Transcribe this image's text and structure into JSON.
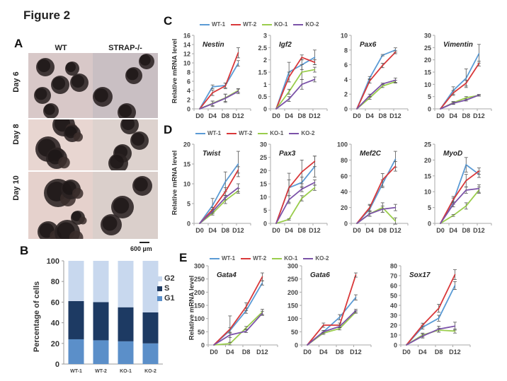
{
  "figure": {
    "title": "Figure 2",
    "panels": {
      "A": "A",
      "B": "B",
      "C": "C",
      "D": "D",
      "E": "E"
    }
  },
  "panelA": {
    "columns": [
      "WT",
      "STRAP-/-"
    ],
    "rows": [
      "Day 6",
      "Day 8",
      "Day 10"
    ],
    "scale_bar": "600 µm"
  },
  "colors": {
    "WT-1": "#5b9bd5",
    "WT-2": "#d9383a",
    "KO-1": "#9acd4c",
    "KO-2": "#7b52a8",
    "G1": "#5b8fc9",
    "S": "#1d3a63",
    "G2": "#c8d8ee"
  },
  "legend_labels": [
    "WT-1",
    "WT-2",
    "KO-1",
    "KO-2"
  ],
  "y_axis_label": "Relative mRNA level",
  "chart_data": [
    {
      "id": "B",
      "type": "bar",
      "stacked": true,
      "title": "",
      "xlabel": "",
      "ylabel": "Percentage of cells",
      "categories": [
        "WT-1",
        "WT-2",
        "KO-1",
        "KO-2"
      ],
      "ylim": [
        0,
        100
      ],
      "yticks": [
        0,
        20,
        40,
        60,
        80,
        100
      ],
      "legend": [
        "G2",
        "S",
        "G1"
      ],
      "legend_position": "right",
      "series": [
        {
          "name": "G1",
          "values": [
            24,
            23,
            22,
            20
          ]
        },
        {
          "name": "S",
          "values": [
            37,
            37,
            33,
            30
          ]
        },
        {
          "name": "G2",
          "values": [
            39,
            40,
            45,
            50
          ]
        }
      ]
    },
    {
      "id": "C-Nestin",
      "type": "line",
      "title": "Nestin",
      "x": [
        "D0",
        "D4",
        "D8",
        "D12"
      ],
      "ylim": [
        0,
        16
      ],
      "yticks": [
        0,
        2,
        4,
        6,
        8,
        10,
        12,
        14,
        16
      ],
      "series": [
        {
          "name": "WT-1",
          "values": [
            0,
            4.8,
            5.1,
            9.9
          ],
          "err": [
            0,
            0.4,
            0.5,
            0.6
          ]
        },
        {
          "name": "WT-2",
          "values": [
            0,
            3.5,
            5.0,
            12.2
          ],
          "err": [
            0,
            0.6,
            0.6,
            1.1
          ]
        },
        {
          "name": "KO-1",
          "values": [
            0,
            1.2,
            2.4,
            4.0
          ],
          "err": [
            0,
            0.5,
            0.8,
            0.4
          ]
        },
        {
          "name": "KO-2",
          "values": [
            0,
            1.1,
            2.3,
            3.8
          ],
          "err": [
            0,
            0.6,
            0.9,
            0.5
          ]
        }
      ]
    },
    {
      "id": "C-Igf2",
      "type": "line",
      "title": "Igf2",
      "x": [
        "D0",
        "D4",
        "D8",
        "D12"
      ],
      "ylim": [
        0,
        3
      ],
      "yticks": [
        0,
        0.5,
        1,
        1.5,
        2,
        2.5,
        3
      ],
      "series": [
        {
          "name": "WT-1",
          "values": [
            0,
            1.5,
            1.8,
            2.1
          ],
          "err": [
            0,
            0.4,
            0.2,
            0.3
          ]
        },
        {
          "name": "WT-2",
          "values": [
            0,
            1.3,
            2.1,
            1.9
          ],
          "err": [
            0,
            0.2,
            0.1,
            0.1
          ]
        },
        {
          "name": "KO-1",
          "values": [
            0,
            0.7,
            1.5,
            1.6
          ],
          "err": [
            0,
            0.1,
            0.3,
            0.1
          ]
        },
        {
          "name": "KO-2",
          "values": [
            0,
            0.4,
            1.0,
            1.2
          ],
          "err": [
            0,
            0.1,
            0.2,
            0.1
          ]
        }
      ]
    },
    {
      "id": "C-Pax6",
      "type": "line",
      "title": "Pax6",
      "x": [
        "D0",
        "D4",
        "D8",
        "D12"
      ],
      "ylim": [
        0,
        10
      ],
      "yticks": [
        0,
        2,
        4,
        6,
        8,
        10
      ],
      "series": [
        {
          "name": "WT-1",
          "values": [
            0,
            4.2,
            7.3,
            8.0
          ],
          "err": [
            0,
            0.2,
            0.1,
            0.3
          ]
        },
        {
          "name": "WT-2",
          "values": [
            0,
            3.8,
            5.9,
            7.7
          ],
          "err": [
            0,
            0.3,
            0.3,
            0.2
          ]
        },
        {
          "name": "KO-1",
          "values": [
            0,
            1.5,
            3.1,
            3.7
          ],
          "err": [
            0,
            0.2,
            0.2,
            0.2
          ]
        },
        {
          "name": "KO-2",
          "values": [
            0,
            1.8,
            3.4,
            3.9
          ],
          "err": [
            0,
            0.2,
            0.1,
            0.3
          ]
        }
      ]
    },
    {
      "id": "C-Vimentin",
      "type": "line",
      "title": "Vimentin",
      "x": [
        "D0",
        "D4",
        "D8",
        "D12"
      ],
      "ylim": [
        0,
        30
      ],
      "yticks": [
        0,
        5,
        10,
        15,
        20,
        25,
        30
      ],
      "series": [
        {
          "name": "WT-1",
          "values": [
            0,
            7.5,
            12.5,
            22.5
          ],
          "err": [
            0,
            1.5,
            3.8,
            3.8
          ]
        },
        {
          "name": "WT-2",
          "values": [
            0,
            6.5,
            10.5,
            18.5
          ],
          "err": [
            0,
            1.0,
            1.2,
            1.0
          ]
        },
        {
          "name": "KO-1",
          "values": [
            0,
            2.5,
            4.5,
            5.5
          ],
          "err": [
            0,
            0.5,
            0.5,
            0.3
          ]
        },
        {
          "name": "KO-2",
          "values": [
            0,
            2.3,
            3.6,
            5.6
          ],
          "err": [
            0,
            0.5,
            0.4,
            0.3
          ]
        }
      ]
    },
    {
      "id": "D-Twist",
      "type": "line",
      "title": "Twist",
      "x": [
        "D0",
        "D4",
        "D8",
        "D12"
      ],
      "ylim": [
        0,
        20
      ],
      "yticks": [
        0,
        5,
        10,
        15,
        20
      ],
      "series": [
        {
          "name": "WT-1",
          "values": [
            0,
            4.5,
            10.5,
            15.0
          ],
          "err": [
            0,
            1.8,
            2.5,
            3.2
          ]
        },
        {
          "name": "WT-2",
          "values": [
            0,
            3.5,
            8.0,
            13.5
          ],
          "err": [
            0,
            0.5,
            1.0,
            0.8
          ]
        },
        {
          "name": "KO-1",
          "values": [
            0,
            2.5,
            5.8,
            8.2
          ],
          "err": [
            0,
            0.4,
            0.8,
            0.6
          ]
        },
        {
          "name": "KO-2",
          "values": [
            0,
            3.0,
            6.5,
            9.0
          ],
          "err": [
            0,
            0.5,
            0.6,
            1.0
          ]
        }
      ]
    },
    {
      "id": "D-Pax3",
      "type": "line",
      "title": "Pax3",
      "x": [
        "D0",
        "D4",
        "D8",
        "D12"
      ],
      "ylim": [
        0,
        30
      ],
      "yticks": [
        0,
        5,
        10,
        15,
        20,
        25,
        30
      ],
      "series": [
        {
          "name": "WT-1",
          "values": [
            0,
            13.5,
            15.5,
            21.5
          ],
          "err": [
            0,
            3.0,
            2.0,
            4.0
          ]
        },
        {
          "name": "WT-2",
          "values": [
            0,
            13.5,
            19.5,
            23.5
          ],
          "err": [
            0,
            5.5,
            4.5,
            2.0
          ]
        },
        {
          "name": "KO-1",
          "values": [
            0,
            1.5,
            9.5,
            13.5
          ],
          "err": [
            0,
            0.3,
            1.0,
            1.0
          ]
        },
        {
          "name": "KO-2",
          "values": [
            0,
            9.0,
            13.0,
            15.5
          ],
          "err": [
            0,
            1.5,
            1.0,
            1.0
          ]
        }
      ]
    },
    {
      "id": "D-Mef2C",
      "type": "line",
      "title": "Mef2C",
      "x": [
        "D0",
        "D4",
        "D8",
        "D12"
      ],
      "ylim": [
        0,
        100
      ],
      "yticks": [
        0,
        20,
        40,
        60,
        80,
        100
      ],
      "series": [
        {
          "name": "WT-1",
          "values": [
            0,
            18,
            50,
            81
          ],
          "err": [
            0,
            5,
            5,
            10
          ]
        },
        {
          "name": "WT-2",
          "values": [
            0,
            20,
            55,
            72
          ],
          "err": [
            0,
            4,
            8,
            6
          ]
        },
        {
          "name": "KO-1",
          "values": [
            0,
            12,
            20,
            3
          ],
          "err": [
            0,
            3,
            6,
            4
          ]
        },
        {
          "name": "KO-2",
          "values": [
            0,
            12,
            18,
            20
          ],
          "err": [
            0,
            3,
            4,
            4
          ]
        }
      ]
    },
    {
      "id": "D-MyoD",
      "type": "line",
      "title": "MyoD",
      "x": [
        "D0",
        "D4",
        "D8",
        "D12"
      ],
      "ylim": [
        0,
        25
      ],
      "yticks": [
        0,
        5,
        10,
        15,
        20,
        25
      ],
      "series": [
        {
          "name": "WT-1",
          "values": [
            0,
            7.0,
            18.5,
            15.5
          ],
          "err": [
            0,
            1.0,
            2.3,
            1.0
          ]
        },
        {
          "name": "WT-2",
          "values": [
            0,
            7.5,
            13.5,
            16.5
          ],
          "err": [
            0,
            1.0,
            2.0,
            1.0
          ]
        },
        {
          "name": "KO-1",
          "values": [
            0,
            2.5,
            5.5,
            10.5
          ],
          "err": [
            0,
            0.3,
            1.0,
            1.0
          ]
        },
        {
          "name": "KO-2",
          "values": [
            0,
            6.0,
            10.5,
            11.0
          ],
          "err": [
            0,
            0.8,
            1.0,
            1.2
          ]
        }
      ]
    },
    {
      "id": "E-Gata4",
      "type": "line",
      "title": "Gata4",
      "x": [
        "D0",
        "D4",
        "D8",
        "D12"
      ],
      "ylim": [
        0,
        300
      ],
      "yticks": [
        0,
        50,
        100,
        150,
        200,
        250,
        300
      ],
      "series": [
        {
          "name": "WT-1",
          "values": [
            0,
            55,
            130,
            235
          ],
          "err": [
            0,
            10,
            10,
            8
          ]
        },
        {
          "name": "WT-2",
          "values": [
            0,
            60,
            145,
            258
          ],
          "err": [
            0,
            50,
            15,
            15
          ]
        },
        {
          "name": "KO-1",
          "values": [
            0,
            5,
            65,
            125
          ],
          "err": [
            0,
            5,
            5,
            10
          ]
        },
        {
          "name": "KO-2",
          "values": [
            0,
            38,
            52,
            120
          ],
          "err": [
            0,
            10,
            5,
            8
          ]
        }
      ]
    },
    {
      "id": "E-Gata6",
      "type": "line",
      "title": "Gata6",
      "x": [
        "D0",
        "D4",
        "D8",
        "D12"
      ],
      "ylim": [
        0,
        300
      ],
      "yticks": [
        0,
        50,
        100,
        150,
        200,
        250,
        300
      ],
      "series": [
        {
          "name": "WT-1",
          "values": [
            0,
            50,
            105,
            180
          ],
          "err": [
            0,
            5,
            10,
            10
          ]
        },
        {
          "name": "WT-2",
          "values": [
            0,
            75,
            75,
            265
          ],
          "err": [
            0,
            8,
            8,
            8
          ]
        },
        {
          "name": "KO-1",
          "values": [
            0,
            45,
            62,
            125
          ],
          "err": [
            0,
            5,
            5,
            5
          ]
        },
        {
          "name": "KO-2",
          "values": [
            0,
            50,
            70,
            130
          ],
          "err": [
            0,
            5,
            5,
            5
          ]
        }
      ]
    },
    {
      "id": "E-Sox17",
      "type": "line",
      "title": "Sox17",
      "x": [
        "D0",
        "D4",
        "D8",
        "D12"
      ],
      "ylim": [
        0,
        80
      ],
      "yticks": [
        0,
        10,
        20,
        30,
        40,
        50,
        60,
        70,
        80
      ],
      "series": [
        {
          "name": "WT-1",
          "values": [
            0,
            18,
            27,
            60
          ],
          "err": [
            0,
            2,
            3,
            4
          ]
        },
        {
          "name": "WT-2",
          "values": [
            0,
            20,
            37,
            71
          ],
          "err": [
            0,
            2,
            4,
            5
          ]
        },
        {
          "name": "KO-1",
          "values": [
            0,
            10,
            15,
            14
          ],
          "err": [
            0,
            2,
            2,
            2
          ]
        },
        {
          "name": "KO-2",
          "values": [
            0,
            9,
            16,
            19
          ],
          "err": [
            0,
            2,
            3,
            4
          ]
        }
      ]
    }
  ]
}
